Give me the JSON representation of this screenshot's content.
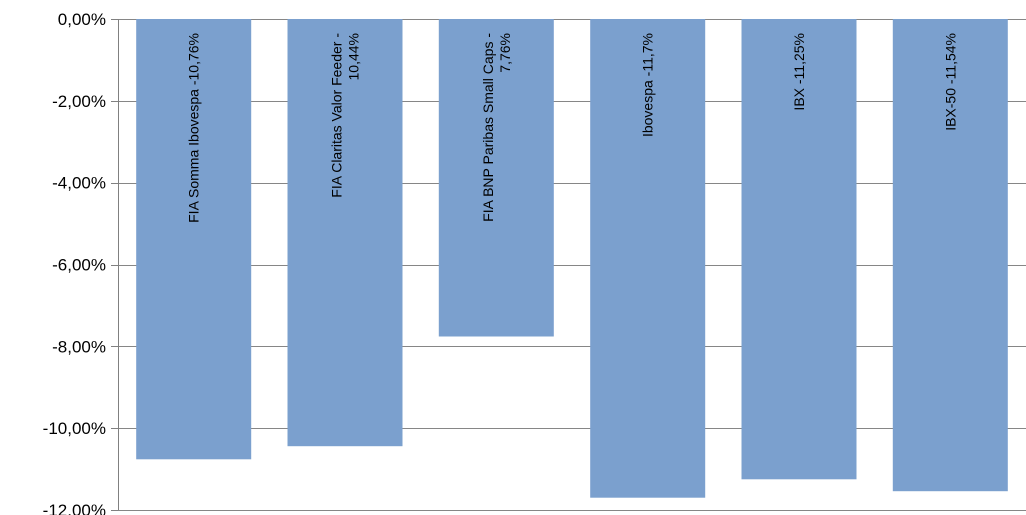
{
  "chart_data": {
    "type": "bar",
    "categories": [
      [
        "FIA Somma Ibovespa -10,76%"
      ],
      [
        "FIA Claritas Valor Feeder -",
        "10,44%"
      ],
      [
        "FIA BNP Paribas Small Caps -",
        "7,76%"
      ],
      [
        "Ibovespa -11,7%"
      ],
      [
        "IBX -11,25%"
      ],
      [
        "IBX-50 -11,54%"
      ]
    ],
    "values": [
      -10.76,
      -10.44,
      -7.76,
      -11.7,
      -11.25,
      -11.54
    ],
    "ylim": [
      -12,
      0
    ],
    "yticks": [
      0,
      -2,
      -4,
      -6,
      -8,
      -10,
      -12
    ],
    "ytick_labels": [
      "0,00%",
      "-2,00%",
      "-4,00%",
      "-6,00%",
      "-8,00%",
      "-10,00%",
      "-12,00%"
    ],
    "grid": true,
    "legend": "none",
    "colors": {
      "bar": "#7ba0ce",
      "grid": "#868686",
      "axis": "#808080"
    }
  }
}
